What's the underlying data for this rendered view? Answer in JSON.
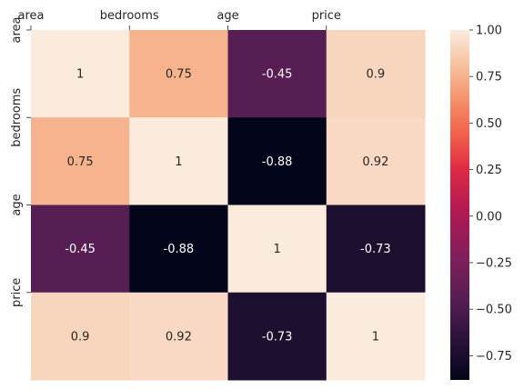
{
  "chart_data": {
    "type": "heatmap",
    "labels": [
      "area",
      "bedrooms",
      "age",
      "price"
    ],
    "values": [
      [
        1,
        0.75,
        -0.45,
        0.9
      ],
      [
        0.75,
        1,
        -0.88,
        0.92
      ],
      [
        -0.45,
        -0.88,
        1,
        -0.73
      ],
      [
        0.9,
        0.92,
        -0.73,
        1
      ]
    ],
    "cell_text": [
      [
        "1",
        "0.75",
        "-0.45",
        "0.9"
      ],
      [
        "0.75",
        "1",
        "-0.88",
        "0.92"
      ],
      [
        "-0.45",
        "-0.88",
        "1",
        "-0.73"
      ],
      [
        "0.9",
        "0.92",
        "-0.73",
        "1"
      ]
    ],
    "colormap": "rocket",
    "vmin": -0.88,
    "vmax": 1.0,
    "colorbar_ticks": [
      1.0,
      0.75,
      0.5,
      0.25,
      0.0,
      -0.25,
      -0.5,
      -0.75
    ],
    "colorbar_tick_labels": [
      "1.00",
      "0.75",
      "0.50",
      "0.25",
      "0.00",
      "−0.25",
      "−0.50",
      "−0.75"
    ],
    "x_tick_position": "top",
    "grid": false,
    "title": "",
    "xlabel": "",
    "ylabel": ""
  }
}
